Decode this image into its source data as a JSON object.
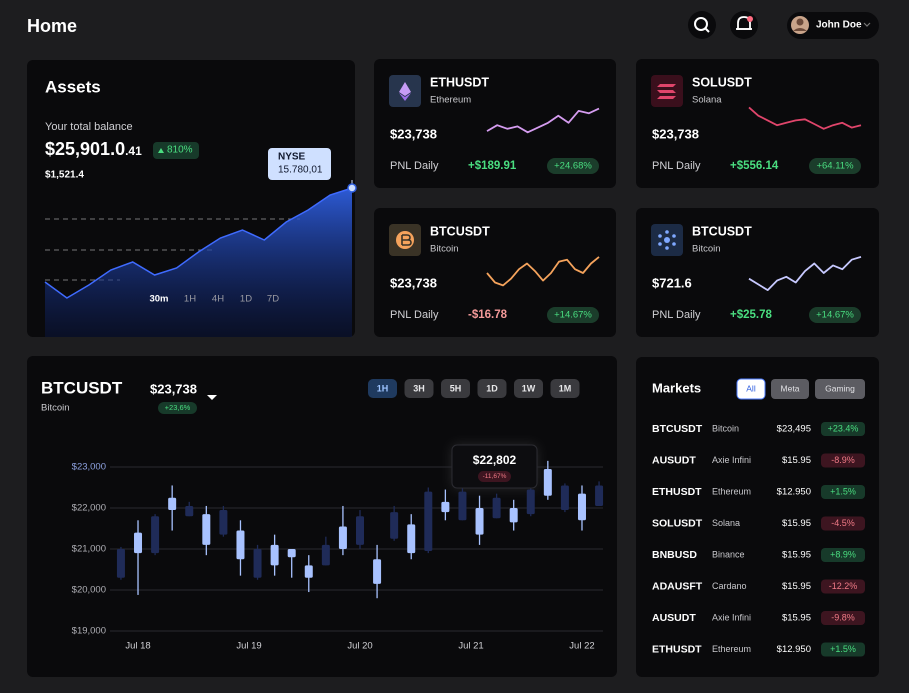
{
  "header": {
    "title": "Home",
    "user": "John Doe"
  },
  "assets": {
    "title": "Assets",
    "balance_label": "Your total balance",
    "balance": "$25,901.0",
    "balance_cents": ".41",
    "change": "810%",
    "sub_balance": "$1,521.4",
    "tooltip": {
      "label": "NYSE",
      "value": "15.780,01"
    },
    "ranges": [
      "30m",
      "1H",
      "4H",
      "1D",
      "7D"
    ],
    "active_range": 0,
    "chart": {
      "type": "area",
      "values": [
        55,
        39,
        52,
        67,
        75,
        62,
        69,
        85,
        99,
        107,
        97,
        115,
        127,
        142,
        149
      ],
      "ylim": [
        0,
        160
      ],
      "color": "#3f6bff"
    }
  },
  "tickers": [
    {
      "symbol": "ETHUSDT",
      "name": "Ethereum",
      "price": "$23,738",
      "pnl_label": "PNL Daily",
      "pnl": "+$189.91",
      "change": "+24.68%",
      "chart": {
        "type": "line",
        "values": [
          10,
          15,
          12,
          14,
          9,
          13,
          17,
          23,
          17,
          27,
          25,
          29
        ],
        "ylim": [
          0,
          32
        ],
        "color": "#d59cf0"
      }
    },
    {
      "symbol": "SOLUSDT",
      "name": "Solana",
      "price": "$23,738",
      "pnl_label": "PNL Daily",
      "pnl": "+$556.14",
      "change": "+64.11%",
      "chart": {
        "type": "line",
        "values": [
          30,
          23,
          19,
          15,
          17,
          19,
          20,
          16,
          12,
          15,
          17,
          13,
          15
        ],
        "ylim": [
          0,
          32
        ],
        "color": "#e0456b"
      }
    },
    {
      "symbol": "BTCUSDT",
      "name": "Bitcoin",
      "price": "$23,738",
      "pnl_label": "PNL Daily",
      "pnl": "-$16.78",
      "change": "+14.67%",
      "chart": {
        "type": "line",
        "values": [
          20,
          10,
          7,
          14,
          24,
          30,
          22,
          12,
          20,
          32,
          34,
          24,
          20,
          30,
          37
        ],
        "ylim": [
          0,
          40
        ],
        "color": "#f5a35c"
      }
    },
    {
      "symbol": "BTCUSDT",
      "name": "Bitcoin",
      "price": "$721.6",
      "pnl_label": "PNL Daily",
      "pnl": "+$25.78",
      "change": "+14.67%",
      "chart": {
        "type": "line",
        "values": [
          14,
          8,
          2,
          12,
          16,
          10,
          22,
          30,
          20,
          28,
          24,
          34,
          37
        ],
        "ylim": [
          0,
          40
        ],
        "color": "#c7c9ff"
      }
    }
  ],
  "candles": {
    "title": "BTCUSDT",
    "subtitle": "Bitcoin",
    "price": "$23,738",
    "change": "+23,6%",
    "ranges": [
      "1H",
      "3H",
      "5H",
      "1D",
      "1W",
      "1M"
    ],
    "active_range": 0,
    "tooltip": {
      "value": "$22,802",
      "change": "-11,67%"
    },
    "chart": {
      "type": "candlestick",
      "x": [
        0,
        1,
        2,
        3,
        4,
        5,
        6,
        7,
        8,
        9,
        10,
        11,
        12,
        13,
        14,
        15,
        16,
        17,
        18,
        19,
        20,
        21,
        22,
        23,
        24,
        25,
        26,
        27,
        28
      ],
      "open": [
        21000,
        20900,
        21800,
        21950,
        22050,
        21100,
        21950,
        20750,
        21000,
        20600,
        20800,
        20300,
        21100,
        21000,
        21800,
        20150,
        21900,
        20900,
        22400,
        21900,
        22400,
        21350,
        22250,
        21650,
        22450,
        22300,
        22550,
        21700,
        22550
      ],
      "high": [
        21050,
        21700,
        21850,
        22550,
        22150,
        22050,
        22050,
        21700,
        21100,
        21350,
        21000,
        20850,
        21300,
        22050,
        21950,
        21100,
        22050,
        21850,
        22500,
        22450,
        22500,
        22300,
        22350,
        22200,
        22550,
        23150,
        22600,
        22550,
        22650
      ],
      "low": [
        20250,
        19880,
        20850,
        21450,
        21800,
        20850,
        21300,
        20350,
        20250,
        20350,
        20300,
        19950,
        20600,
        20850,
        21000,
        19800,
        21200,
        20750,
        20900,
        21700,
        21700,
        21100,
        21750,
        21450,
        21800,
        22200,
        21900,
        21450,
        22050
      ],
      "close": [
        20300,
        21400,
        20900,
        22250,
        21800,
        21850,
        21350,
        21450,
        20300,
        21100,
        21000,
        20600,
        20600,
        21550,
        21100,
        20750,
        21250,
        21600,
        20950,
        22150,
        21700,
        22000,
        21750,
        22000,
        21850,
        22950,
        21950,
        22350,
        22050
      ],
      "xlim": [
        -0.5,
        28.5
      ],
      "ylim": [
        18800,
        23500
      ],
      "xticks": [
        {
          "value": 1,
          "label": "Jul 18"
        },
        {
          "value": 7.5,
          "label": "Jul 19"
        },
        {
          "value": 14,
          "label": "Jul 20"
        },
        {
          "value": 20.5,
          "label": "Jul 21"
        },
        {
          "value": 27,
          "label": "Jul 22"
        }
      ],
      "yticks": [
        {
          "value": 19000,
          "label": "$19,000"
        },
        {
          "value": 20000,
          "label": "$20,000"
        },
        {
          "value": 21000,
          "label": "$21,000"
        },
        {
          "value": 22000,
          "label": "$22,000"
        },
        {
          "value": 23000,
          "label": "$23,000"
        }
      ],
      "up_color": "#a8c2ff",
      "down_color": "#1f2b58",
      "grid": true
    }
  },
  "markets": {
    "title": "Markets",
    "filters": [
      "All",
      "Meta",
      "Gaming"
    ],
    "active_filter": 0,
    "rows": [
      [
        "BTCUSDT",
        "Bitcoin",
        "$23,495",
        "+23.4%"
      ],
      [
        "AUSUDT",
        "Axie Infini",
        "$15.95",
        "-8.9%"
      ],
      [
        "ETHUSDT",
        "Ethereum",
        "$12.950",
        "+1.5%"
      ],
      [
        "SOLUSDT",
        "Solana",
        "$15.95",
        "-4.5%"
      ],
      [
        "BNBUSD",
        "Binance",
        "$15.95",
        "+8.9%"
      ],
      [
        "ADAUSFT",
        "Cardano",
        "$15.95",
        "-12.2%"
      ],
      [
        "AUSUDT",
        "Axie Infini",
        "$15.95",
        "-9.8%"
      ],
      [
        "ETHUSDT",
        "Ethereum",
        "$12.950",
        "+1.5%"
      ]
    ]
  }
}
